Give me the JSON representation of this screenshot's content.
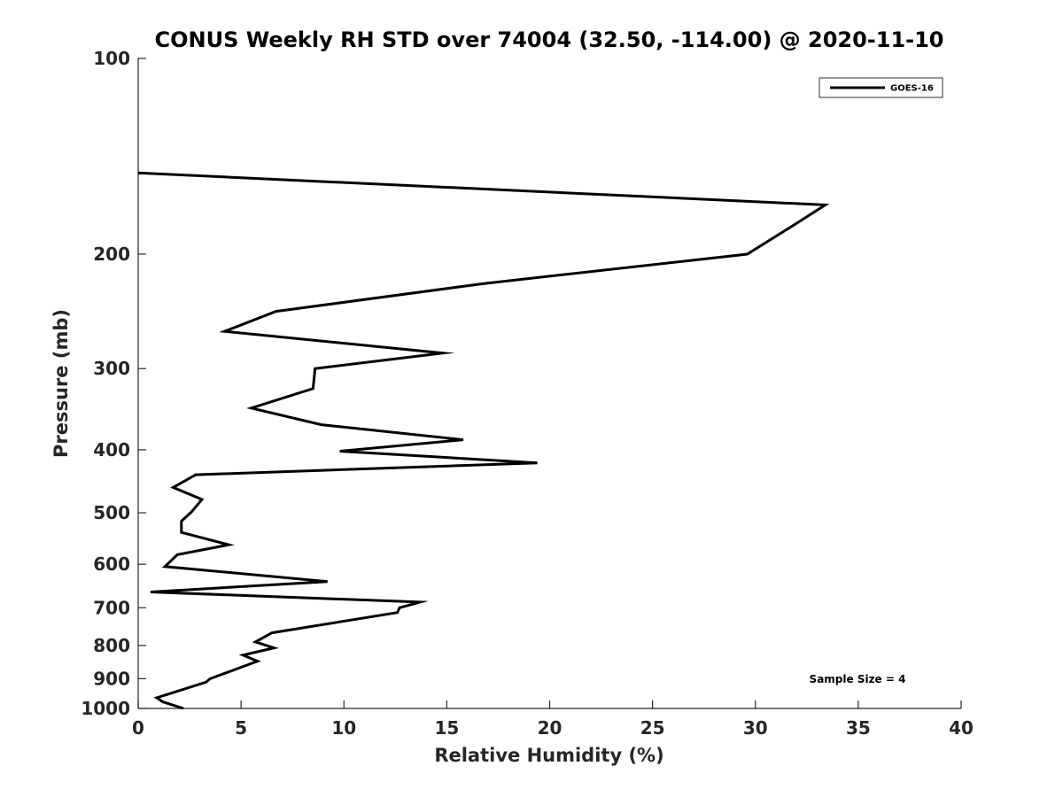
{
  "chart_data": {
    "type": "line",
    "title": "CONUS Weekly RH STD over 74004 (32.50, -114.00) @ 2020-11-10",
    "xlabel": "Relative Humidity (%)",
    "ylabel": "Pressure (mb)",
    "xlim": [
      0,
      40
    ],
    "ylim": [
      100,
      1000
    ],
    "y_scale": "log",
    "y_reversed": true,
    "x_ticks": [
      "0",
      "5",
      "10",
      "15",
      "20",
      "25",
      "30",
      "35",
      "40"
    ],
    "y_ticks": [
      "100",
      "200",
      "300",
      "400",
      "500",
      "600",
      "700",
      "800",
      "900",
      "1000"
    ],
    "grid": false,
    "legend_position": "top-right",
    "annotation": "Sample Size = 4",
    "series": [
      {
        "name": "GOES-16",
        "color": "#000000",
        "points": [
          {
            "x": 0.0,
            "y": 150
          },
          {
            "x": 33.4,
            "y": 168
          },
          {
            "x": 31.8,
            "y": 181
          },
          {
            "x": 29.6,
            "y": 200
          },
          {
            "x": 16.8,
            "y": 222
          },
          {
            "x": 6.7,
            "y": 245
          },
          {
            "x": 4.2,
            "y": 263
          },
          {
            "x": 14.8,
            "y": 284
          },
          {
            "x": 8.6,
            "y": 300
          },
          {
            "x": 8.5,
            "y": 322
          },
          {
            "x": 5.5,
            "y": 345
          },
          {
            "x": 8.9,
            "y": 366
          },
          {
            "x": 15.8,
            "y": 386
          },
          {
            "x": 9.8,
            "y": 402
          },
          {
            "x": 19.4,
            "y": 419
          },
          {
            "x": 2.8,
            "y": 437
          },
          {
            "x": 1.7,
            "y": 457
          },
          {
            "x": 3.1,
            "y": 477
          },
          {
            "x": 2.6,
            "y": 498
          },
          {
            "x": 2.1,
            "y": 515
          },
          {
            "x": 2.1,
            "y": 536
          },
          {
            "x": 4.4,
            "y": 560
          },
          {
            "x": 1.9,
            "y": 580
          },
          {
            "x": 1.3,
            "y": 605
          },
          {
            "x": 9.2,
            "y": 638
          },
          {
            "x": 0.6,
            "y": 662
          },
          {
            "x": 13.7,
            "y": 686
          },
          {
            "x": 12.7,
            "y": 700
          },
          {
            "x": 12.6,
            "y": 712
          },
          {
            "x": 6.5,
            "y": 765
          },
          {
            "x": 5.7,
            "y": 790
          },
          {
            "x": 6.6,
            "y": 807
          },
          {
            "x": 5.1,
            "y": 828
          },
          {
            "x": 5.8,
            "y": 846
          },
          {
            "x": 3.5,
            "y": 900
          },
          {
            "x": 3.3,
            "y": 911
          },
          {
            "x": 0.9,
            "y": 963
          },
          {
            "x": 1.2,
            "y": 977
          },
          {
            "x": 2.2,
            "y": 1000
          }
        ]
      }
    ]
  }
}
